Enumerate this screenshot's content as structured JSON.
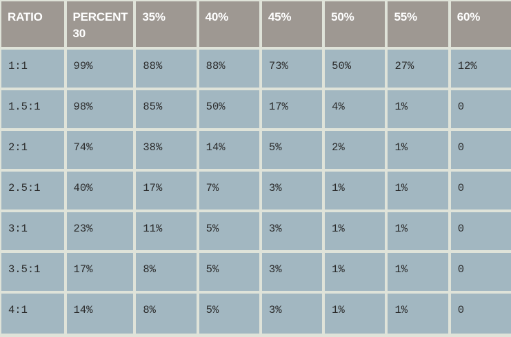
{
  "table": {
    "headers": [
      "RATIO",
      "PERCENT 30",
      "35%",
      "40%",
      "45%",
      "50%",
      "55%",
      "60%"
    ],
    "rows": [
      [
        "1:1",
        "99%",
        "88%",
        "88%",
        "73%",
        "50%",
        "27%",
        "12%"
      ],
      [
        "1.5:1",
        "98%",
        "85%",
        "50%",
        "17%",
        "4%",
        "1%",
        "0"
      ],
      [
        "2:1",
        "74%",
        "38%",
        "14%",
        "5%",
        "2%",
        "1%",
        "0"
      ],
      [
        "2.5:1",
        "40%",
        "17%",
        "7%",
        "3%",
        "1%",
        "1%",
        "0"
      ],
      [
        "3:1",
        "23%",
        "11%",
        "5%",
        "3%",
        "1%",
        "1%",
        "0"
      ],
      [
        "3.5:1",
        "17%",
        "8%",
        "5%",
        "3%",
        "1%",
        "1%",
        "0"
      ],
      [
        "4:1",
        "14%",
        "8%",
        "5%",
        "3%",
        "1%",
        "1%",
        "0"
      ]
    ]
  },
  "colors": {
    "header_bg": "#9e9892",
    "header_text": "#ffffff",
    "cell_bg": "#a2b7c1",
    "cell_text": "#2b2b2b",
    "grid_lines": "#ffffff"
  }
}
